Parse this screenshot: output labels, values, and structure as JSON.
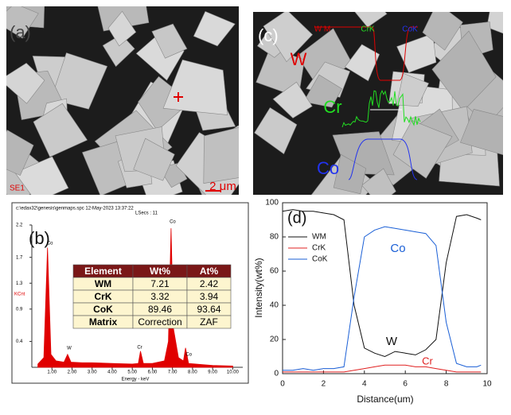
{
  "panels": {
    "a": {
      "label": "(a)",
      "detector": "SE1",
      "scale_bar": "2 μm"
    },
    "c": {
      "label": "(c)",
      "profile_labels": [
        "W M",
        "CrK",
        "CoK"
      ],
      "element_labels": [
        "W",
        "Cr",
        "Co"
      ]
    }
  },
  "spectrum": {
    "type": "area",
    "label": "(b)",
    "file": "c:\\edax32\\genesis\\genmaps.spc  12-May-2023 13:37:22",
    "lsecs": "LSecs : 11",
    "y_label": "KCnt",
    "x_label": "Energy - keV",
    "color": "#e00000",
    "x": [
      0.3,
      0.6,
      0.78,
      0.95,
      1.2,
      1.6,
      1.78,
      1.95,
      2.5,
      3,
      4,
      5,
      5.3,
      5.41,
      5.55,
      6,
      6.6,
      6.8,
      6.93,
      7.05,
      7.3,
      7.55,
      7.65,
      7.8,
      8.5,
      9,
      10
    ],
    "values": [
      0.05,
      0.15,
      1.85,
      0.2,
      0.1,
      0.08,
      0.2,
      0.08,
      0.07,
      0.07,
      0.06,
      0.05,
      0.06,
      0.25,
      0.06,
      0.06,
      0.1,
      0.4,
      2.15,
      0.6,
      0.15,
      0.1,
      0.3,
      0.06,
      0.04,
      0.03,
      0.02
    ],
    "xlim": [
      0,
      10.5
    ],
    "ylim": [
      0,
      2.2
    ],
    "xticks": [
      {
        "value": 1,
        "label": "1.00"
      },
      {
        "value": 2,
        "label": "2.00"
      },
      {
        "value": 3,
        "label": "3.00"
      },
      {
        "value": 4,
        "label": "4.00"
      },
      {
        "value": 5,
        "label": "5.00"
      },
      {
        "value": 6,
        "label": "6.00"
      },
      {
        "value": 7,
        "label": "7.00"
      },
      {
        "value": 8,
        "label": "8.00"
      },
      {
        "value": 9,
        "label": "9.00"
      },
      {
        "value": 10,
        "label": "10.00"
      }
    ],
    "yticks": [
      0.4,
      0.9,
      1.3,
      1.7,
      2.2
    ],
    "peak_labels": [
      "Co",
      "W",
      "Cr",
      "Co",
      "Co"
    ],
    "table": {
      "headers": [
        "Element",
        "Wt%",
        "At%"
      ],
      "rows": [
        [
          "WM",
          7.21,
          2.42
        ],
        [
          "CrK",
          3.32,
          3.94
        ],
        [
          "CoK",
          89.46,
          93.64
        ],
        [
          "Matrix",
          "Correction",
          "ZAF"
        ]
      ]
    }
  },
  "chart_data": {
    "type": "line",
    "label": "(d)",
    "x_label": "Distance(um)",
    "y_label": "Intensity(wt%)",
    "x": [
      0,
      0.5,
      1,
      1.5,
      2,
      2.5,
      3,
      3.5,
      4,
      4.5,
      5,
      5.5,
      6,
      6.5,
      7,
      7.5,
      8,
      8.5,
      9,
      9.5,
      9.7
    ],
    "series": [
      {
        "name": "WM",
        "color": "#111111",
        "values": [
          95,
          96,
          95,
          95,
          94,
          93,
          90,
          40,
          15,
          12,
          10,
          13,
          12,
          11,
          14,
          20,
          65,
          92,
          93,
          91,
          90
        ]
      },
      {
        "name": "CrK",
        "color": "#e02020",
        "values": [
          1,
          1,
          1,
          1,
          1,
          1,
          1,
          2,
          3,
          4,
          5,
          5,
          5,
          4,
          4,
          3,
          2,
          1,
          1,
          1,
          1
        ]
      },
      {
        "name": "CoK",
        "color": "#1a5fd6",
        "values": [
          2,
          2,
          3,
          2,
          3,
          3,
          4,
          45,
          80,
          84,
          86,
          85,
          84,
          83,
          82,
          75,
          30,
          6,
          4,
          4,
          5
        ]
      }
    ],
    "xlim": [
      0,
      10
    ],
    "ylim": [
      0,
      100
    ],
    "xticks": [
      0,
      2,
      4,
      6,
      8,
      10
    ],
    "yticks": [
      0,
      20,
      40,
      60,
      80,
      100
    ],
    "legend": "upper left",
    "annotations": [
      {
        "text": "Co",
        "color": "#1a5fd6"
      },
      {
        "text": "W",
        "color": "#111111"
      },
      {
        "text": "Cr",
        "color": "#e02020"
      }
    ]
  }
}
